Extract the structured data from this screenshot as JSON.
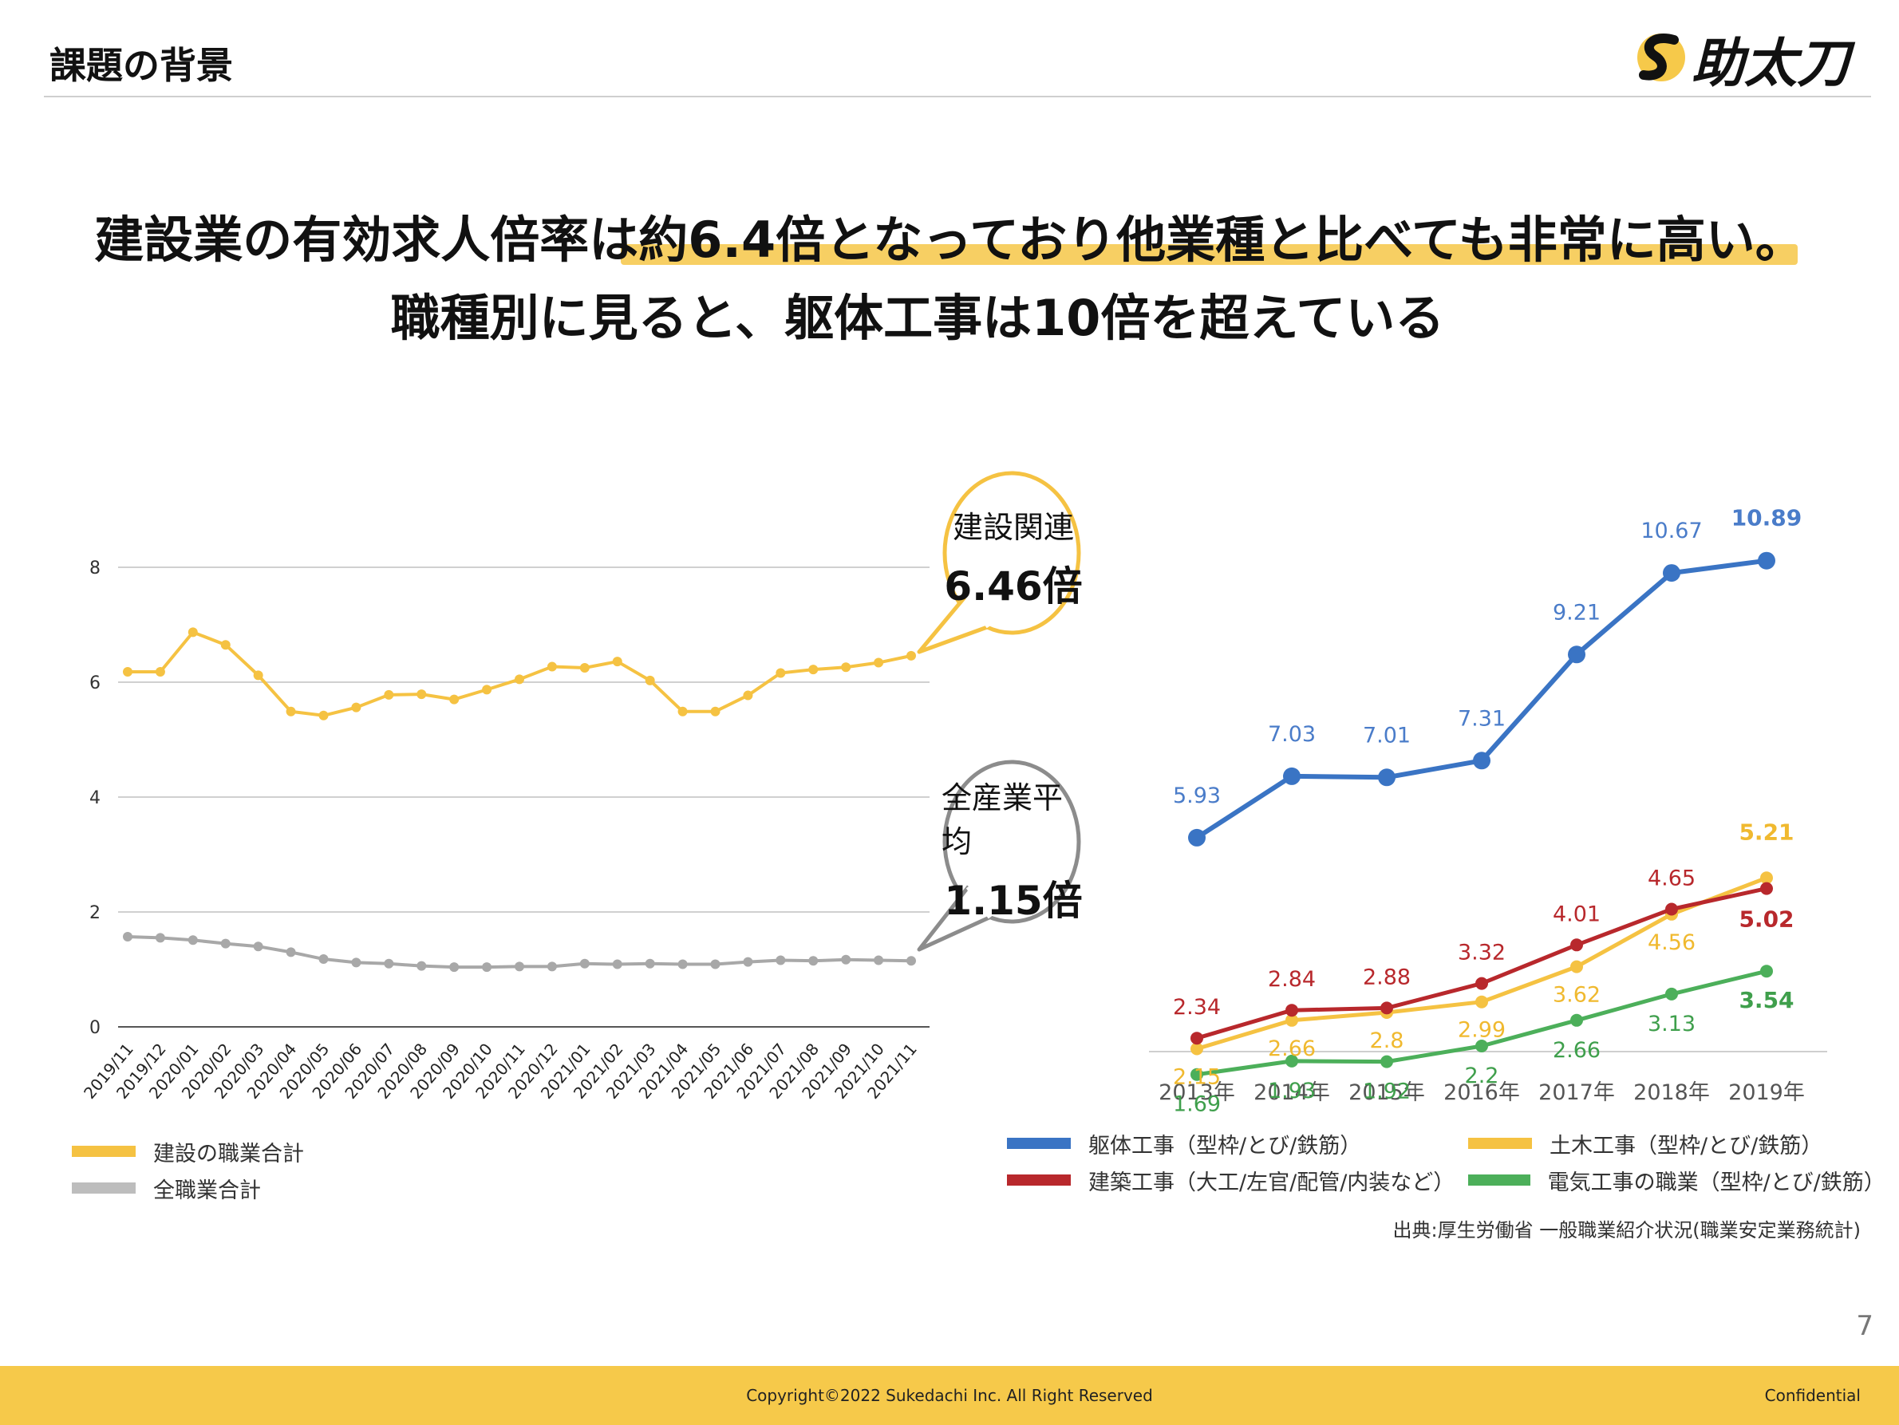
{
  "header": {
    "title": "課題の背景",
    "logo_text": "助太刀"
  },
  "headline": {
    "line1": "建設業の有効求人倍率は約6.4倍となっており他業種と比べても非常に高い。",
    "line2": "職種別に見ると、躯体工事は10倍を超えている"
  },
  "bubbles": {
    "construction": {
      "label": "建設関連",
      "value": "6.46倍"
    },
    "all": {
      "label": "全産業平均",
      "value": "1.15倍"
    }
  },
  "colors": {
    "yellow": "#f5c242",
    "gray": "#a8a8a8",
    "blue": "#3a74c4",
    "red": "#b8282c",
    "green": "#4caf5a",
    "footer": "#f6c94a"
  },
  "chart_data": [
    {
      "type": "line",
      "x": [
        "2019/11",
        "2019/12",
        "2020/01",
        "2020/02",
        "2020/03",
        "2020/04",
        "2020/05",
        "2020/06",
        "2020/07",
        "2020/08",
        "2020/09",
        "2020/10",
        "2020/11",
        "2020/12",
        "2021/01",
        "2021/02",
        "2021/03",
        "2021/04",
        "2021/05",
        "2021/06",
        "2021/07",
        "2021/08",
        "2021/09",
        "2021/10",
        "2021/11"
      ],
      "yticks": [
        "0",
        "2",
        "4",
        "6",
        "8"
      ],
      "ylim": [
        0,
        9
      ],
      "grid": true,
      "series": [
        {
          "name": "建設の職業合計",
          "color": "#f5c242",
          "values": [
            6.18,
            6.18,
            6.87,
            6.65,
            6.12,
            5.49,
            5.42,
            5.56,
            5.78,
            5.79,
            5.7,
            5.87,
            6.05,
            6.27,
            6.25,
            6.36,
            6.03,
            5.49,
            5.49,
            5.77,
            6.16,
            6.22,
            6.26,
            6.34,
            6.46
          ]
        },
        {
          "name": "全職業合計",
          "color": "#a8a8a8",
          "values": [
            1.57,
            1.55,
            1.51,
            1.45,
            1.4,
            1.3,
            1.18,
            1.12,
            1.1,
            1.06,
            1.04,
            1.04,
            1.05,
            1.05,
            1.1,
            1.09,
            1.1,
            1.09,
            1.09,
            1.13,
            1.16,
            1.15,
            1.17,
            1.16,
            1.15
          ]
        }
      ]
    },
    {
      "type": "line",
      "categories": [
        "2013年",
        "2014年",
        "2015年",
        "2016年",
        "2017年",
        "2018年",
        "2019年"
      ],
      "series": [
        {
          "name": "躯体工事（型枠/とび/鉄筋）",
          "color": "#3a74c4",
          "labels": [
            "5.93",
            "7.03",
            "7.01",
            "7.31",
            "9.21",
            "10.67",
            "10.89"
          ],
          "values": [
            5.93,
            7.03,
            7.01,
            7.31,
            9.21,
            10.67,
            10.89
          ]
        },
        {
          "name": "土木工事（型枠/とび/鉄筋）",
          "color": "#f5c242",
          "labels": [
            "2.15",
            "2.66",
            "2.8",
            "2.99",
            "3.62",
            "4.56",
            "5.21"
          ],
          "values": [
            2.15,
            2.66,
            2.8,
            2.99,
            3.62,
            4.56,
            5.21
          ]
        },
        {
          "name": "建築工事（大工/左官/配管/内装など）",
          "color": "#b8282c",
          "labels": [
            "2.34",
            "2.84",
            "2.88",
            "3.32",
            "4.01",
            "4.65",
            "5.02"
          ],
          "values": [
            2.34,
            2.84,
            2.88,
            3.32,
            4.01,
            4.65,
            5.02
          ]
        },
        {
          "name": "電気工事の職業（型枠/とび/鉄筋）",
          "color": "#4caf5a",
          "labels": [
            "1.69",
            "1.93",
            "1.92",
            "2.2",
            "2.66",
            "3.13",
            "3.54"
          ],
          "values": [
            1.69,
            1.93,
            1.92,
            2.2,
            2.66,
            3.13,
            3.54
          ]
        }
      ]
    }
  ],
  "legend_left": [
    "建設の職業合計",
    "全職業合計"
  ],
  "legend_right": [
    "躯体工事（型枠/とび/鉄筋）",
    "土木工事（型枠/とび/鉄筋）",
    "建築工事（大工/左官/配管/内装など）",
    "電気工事の職業（型枠/とび/鉄筋）"
  ],
  "source": "出典:厚生労働省 一般職業紹介状況(職業安定業務統計)",
  "page_number": "7",
  "footer": {
    "copyright": "Copyright©2022 Sukedachi Inc. All Right Reserved",
    "confidential": "Confidential"
  }
}
